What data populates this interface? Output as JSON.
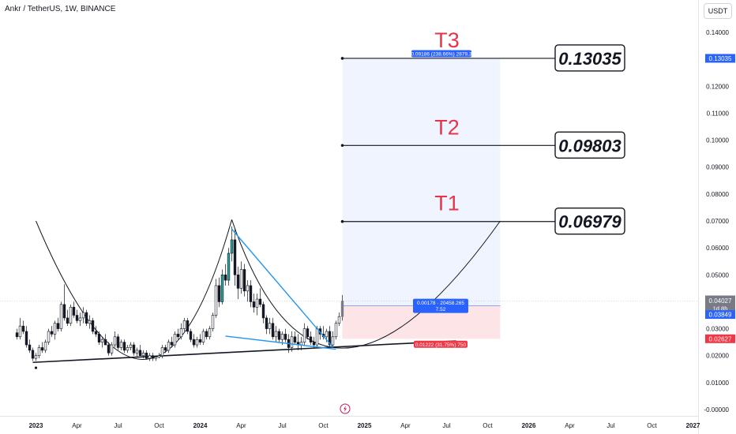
{
  "header": {
    "symbol": "Ankr / TetherUS, 1W, BINANCE"
  },
  "unit_button": "USDT",
  "colors": {
    "up": "#26a69a",
    "down": "#ef5350",
    "blue": "#2962ff",
    "red_label": "#f23645",
    "target_text": "#e8334a",
    "last_price_bg": "#787b86"
  },
  "chart_data": {
    "type": "candlestick",
    "title": "Ankr / TetherUS, 1W, BINANCE",
    "y_unit": "USDT",
    "y_ticks": [
      "0.14000",
      "0.13000",
      "0.12000",
      "0.11000",
      "0.10000",
      "0.09000",
      "0.08000",
      "0.07000",
      "0.06000",
      "0.05000",
      "0.04000",
      "0.03000",
      "0.02000",
      "0.01000",
      "-0.00000"
    ],
    "y_tick_values": [
      0.14,
      0.13,
      0.12,
      0.11,
      0.1,
      0.09,
      0.08,
      0.07,
      0.06,
      0.05,
      0.04,
      0.03,
      0.02,
      0.01,
      0.0
    ],
    "ylim": [
      -0.0005,
      0.1515
    ],
    "x_ticks": [
      "2023",
      "Apr",
      "Jul",
      "Oct",
      "2024",
      "Apr",
      "Jul",
      "Oct",
      "2025",
      "Apr",
      "Jul",
      "Oct",
      "2026",
      "Apr",
      "Jul",
      "Oct",
      "2027"
    ],
    "x_tick_weeks": [
      0,
      13,
      26,
      39,
      52,
      65,
      78,
      91,
      104,
      117,
      130,
      143,
      156,
      169,
      182,
      195,
      208
    ],
    "x_tick_bold": [
      true,
      false,
      false,
      false,
      true,
      false,
      false,
      false,
      true,
      false,
      false,
      false,
      true,
      false,
      false,
      false,
      true
    ],
    "candles": [
      [
        -6,
        0.0285,
        0.03,
        0.026,
        0.027
      ],
      [
        -5,
        0.027,
        0.034,
        0.026,
        0.031
      ],
      [
        -4,
        0.031,
        0.033,
        0.028,
        0.029
      ],
      [
        -3,
        0.029,
        0.031,
        0.023,
        0.024
      ],
      [
        -2,
        0.024,
        0.026,
        0.021,
        0.022
      ],
      [
        -1,
        0.022,
        0.023,
        0.018,
        0.019
      ],
      [
        0,
        0.019,
        0.021,
        0.018,
        0.02
      ],
      [
        1,
        0.02,
        0.024,
        0.019,
        0.023
      ],
      [
        2,
        0.023,
        0.025,
        0.021,
        0.022
      ],
      [
        3,
        0.022,
        0.026,
        0.021,
        0.025
      ],
      [
        4,
        0.025,
        0.03,
        0.024,
        0.029
      ],
      [
        5,
        0.029,
        0.031,
        0.027,
        0.028
      ],
      [
        6,
        0.028,
        0.033,
        0.026,
        0.032
      ],
      [
        7,
        0.032,
        0.034,
        0.029,
        0.03
      ],
      [
        8,
        0.03,
        0.04,
        0.029,
        0.039
      ],
      [
        9,
        0.039,
        0.0465,
        0.033,
        0.034
      ],
      [
        10,
        0.034,
        0.037,
        0.031,
        0.032
      ],
      [
        11,
        0.032,
        0.039,
        0.031,
        0.038
      ],
      [
        12,
        0.038,
        0.04,
        0.034,
        0.035
      ],
      [
        13,
        0.035,
        0.037,
        0.032,
        0.033
      ],
      [
        14,
        0.033,
        0.036,
        0.031,
        0.034
      ],
      [
        15,
        0.034,
        0.038,
        0.032,
        0.036
      ],
      [
        16,
        0.036,
        0.037,
        0.031,
        0.032
      ],
      [
        17,
        0.032,
        0.035,
        0.03,
        0.033
      ],
      [
        18,
        0.033,
        0.034,
        0.028,
        0.029
      ],
      [
        19,
        0.029,
        0.031,
        0.027,
        0.028
      ],
      [
        20,
        0.028,
        0.029,
        0.024,
        0.025
      ],
      [
        21,
        0.025,
        0.027,
        0.023,
        0.026
      ],
      [
        22,
        0.026,
        0.028,
        0.024,
        0.024
      ],
      [
        23,
        0.024,
        0.025,
        0.02,
        0.021
      ],
      [
        24,
        0.021,
        0.025,
        0.02,
        0.024
      ],
      [
        25,
        0.024,
        0.029,
        0.023,
        0.027
      ],
      [
        26,
        0.027,
        0.028,
        0.022,
        0.023
      ],
      [
        27,
        0.023,
        0.026,
        0.022,
        0.025
      ],
      [
        28,
        0.025,
        0.026,
        0.021,
        0.022
      ],
      [
        29,
        0.022,
        0.024,
        0.021,
        0.023
      ],
      [
        30,
        0.023,
        0.025,
        0.022,
        0.024
      ],
      [
        31,
        0.024,
        0.025,
        0.02,
        0.021
      ],
      [
        32,
        0.021,
        0.023,
        0.0195,
        0.022
      ],
      [
        33,
        0.022,
        0.024,
        0.02,
        0.02
      ],
      [
        34,
        0.02,
        0.022,
        0.019,
        0.021
      ],
      [
        35,
        0.021,
        0.022,
        0.0185,
        0.019
      ],
      [
        36,
        0.019,
        0.021,
        0.018,
        0.02
      ],
      [
        37,
        0.02,
        0.021,
        0.018,
        0.019
      ],
      [
        38,
        0.019,
        0.02,
        0.018,
        0.0195
      ],
      [
        39,
        0.0195,
        0.021,
        0.019,
        0.02
      ],
      [
        40,
        0.02,
        0.024,
        0.019,
        0.023
      ],
      [
        41,
        0.023,
        0.024,
        0.021,
        0.022
      ],
      [
        42,
        0.022,
        0.026,
        0.021,
        0.025
      ],
      [
        43,
        0.025,
        0.027,
        0.023,
        0.024
      ],
      [
        44,
        0.024,
        0.029,
        0.023,
        0.028
      ],
      [
        45,
        0.028,
        0.03,
        0.026,
        0.027
      ],
      [
        46,
        0.027,
        0.032,
        0.026,
        0.03
      ],
      [
        47,
        0.03,
        0.034,
        0.029,
        0.033
      ],
      [
        48,
        0.033,
        0.034,
        0.028,
        0.029
      ],
      [
        49,
        0.029,
        0.03,
        0.025,
        0.026
      ],
      [
        50,
        0.026,
        0.028,
        0.023,
        0.024
      ],
      [
        51,
        0.024,
        0.027,
        0.023,
        0.026
      ],
      [
        52,
        0.026,
        0.028,
        0.024,
        0.025
      ],
      [
        53,
        0.025,
        0.03,
        0.024,
        0.029
      ],
      [
        54,
        0.029,
        0.03,
        0.026,
        0.027
      ],
      [
        55,
        0.027,
        0.031,
        0.026,
        0.03
      ],
      [
        56,
        0.03,
        0.036,
        0.029,
        0.035
      ],
      [
        57,
        0.035,
        0.0485,
        0.034,
        0.046
      ],
      [
        58,
        0.046,
        0.049,
        0.038,
        0.04
      ],
      [
        59,
        0.04,
        0.052,
        0.039,
        0.05
      ],
      [
        60,
        0.05,
        0.054,
        0.046,
        0.048
      ],
      [
        61,
        0.048,
        0.06,
        0.046,
        0.058
      ],
      [
        62,
        0.058,
        0.068,
        0.055,
        0.063
      ],
      [
        63,
        0.063,
        0.067,
        0.046,
        0.05
      ],
      [
        64,
        0.05,
        0.053,
        0.041,
        0.045
      ],
      [
        65,
        0.045,
        0.055,
        0.043,
        0.052
      ],
      [
        66,
        0.052,
        0.054,
        0.042,
        0.044
      ],
      [
        67,
        0.044,
        0.048,
        0.04,
        0.046
      ],
      [
        68,
        0.046,
        0.048,
        0.038,
        0.04
      ],
      [
        69,
        0.04,
        0.043,
        0.036,
        0.038
      ],
      [
        70,
        0.038,
        0.043,
        0.035,
        0.041
      ],
      [
        71,
        0.041,
        0.045,
        0.038,
        0.039
      ],
      [
        72,
        0.039,
        0.04,
        0.032,
        0.034
      ],
      [
        73,
        0.034,
        0.035,
        0.028,
        0.03
      ],
      [
        74,
        0.03,
        0.034,
        0.028,
        0.032
      ],
      [
        75,
        0.032,
        0.034,
        0.026,
        0.027
      ],
      [
        76,
        0.027,
        0.031,
        0.025,
        0.029
      ],
      [
        77,
        0.029,
        0.03,
        0.025,
        0.026
      ],
      [
        78,
        0.026,
        0.029,
        0.024,
        0.028
      ],
      [
        79,
        0.028,
        0.03,
        0.025,
        0.026
      ],
      [
        80,
        0.026,
        0.028,
        0.021,
        0.023
      ],
      [
        81,
        0.023,
        0.029,
        0.0215,
        0.027
      ],
      [
        82,
        0.027,
        0.029,
        0.024,
        0.025
      ],
      [
        83,
        0.025,
        0.028,
        0.022,
        0.024
      ],
      [
        84,
        0.024,
        0.027,
        0.022,
        0.025
      ],
      [
        85,
        0.025,
        0.032,
        0.024,
        0.03
      ],
      [
        86,
        0.03,
        0.031,
        0.026,
        0.027
      ],
      [
        87,
        0.027,
        0.029,
        0.024,
        0.025
      ],
      [
        88,
        0.025,
        0.027,
        0.023,
        0.024
      ],
      [
        89,
        0.024,
        0.031,
        0.023,
        0.03
      ],
      [
        90,
        0.03,
        0.031,
        0.026,
        0.028
      ],
      [
        91,
        0.028,
        0.031,
        0.026,
        0.027
      ],
      [
        92,
        0.027,
        0.03,
        0.025,
        0.029
      ],
      [
        93,
        0.029,
        0.031,
        0.023,
        0.024
      ],
      [
        94,
        0.024,
        0.029,
        0.023,
        0.027
      ],
      [
        95,
        0.027,
        0.033,
        0.026,
        0.032
      ],
      [
        96,
        0.032,
        0.036,
        0.031,
        0.0345
      ],
      [
        97,
        0.0345,
        0.0425,
        0.033,
        0.04027
      ]
    ],
    "swing_low_dot": [
      0,
      0.0155
    ],
    "trendline": {
      "from": [
        -1,
        0.0175
      ],
      "to": [
        133,
        0.02548
      ]
    },
    "wedge_upper": {
      "from": [
        62,
        0.067
      ],
      "to": [
        94,
        0.02315
      ]
    },
    "wedge_lower": {
      "from": [
        60,
        0.02725
      ],
      "to": [
        95,
        0.0224
      ]
    },
    "arc_left": {
      "from": [
        0,
        0.07
      ],
      "via": [
        34,
        0.0186
      ],
      "to": [
        62,
        0.0705
      ]
    },
    "arc_right": {
      "from": [
        62,
        0.0705
      ],
      "via": [
        97,
        0.0228
      ],
      "to": [
        147,
        0.07
      ]
    },
    "position": {
      "x_start": 97,
      "x_end": 147,
      "entry": 0.03849,
      "target": 0.13035,
      "stop": 0.02627,
      "target_label": "0.09186 (238.66%) 2879.3",
      "center_label_line1": "0.00178 · 20458.265",
      "center_label_line2": "7.52",
      "stop_label": "0.01222 (31.75%) 750"
    },
    "targets": [
      {
        "name": "T1",
        "value": "0.06979",
        "price": 0.06979,
        "x_start": 97
      },
      {
        "name": "T2",
        "value": "0.09803",
        "price": 0.09803,
        "x_start": 97
      },
      {
        "name": "T3",
        "value": "0.13035",
        "price": 0.13035,
        "x_start": 97
      }
    ],
    "price_labels": {
      "target": "0.13035",
      "last": "0.04027",
      "countdown": "1d 8h",
      "entry": "0.03849",
      "stop": "0.02627"
    },
    "event_marker_icon": "lightning-icon",
    "grid": false
  }
}
